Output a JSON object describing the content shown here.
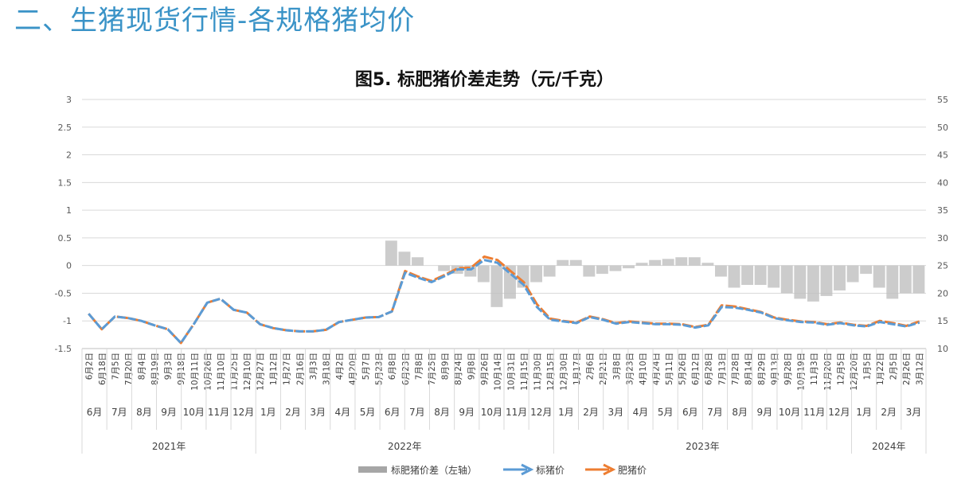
{
  "page_title": "二、生猪现货行情-各规格猪均价",
  "chart_data": {
    "type": "line",
    "title": "图5. 标肥猪价差走势（元/千克）",
    "left_axis": {
      "ticks": [
        "3",
        "2.5",
        "2",
        "1.5",
        "1",
        "0.5",
        "0",
        "-0.5",
        "-1",
        "-1.5"
      ],
      "min": -1.5,
      "max": 3
    },
    "right_axis": {
      "ticks": [
        "55",
        "50",
        "45",
        "40",
        "35",
        "30",
        "25",
        "20",
        "15",
        "10"
      ],
      "min": 10,
      "max": 55
    },
    "grid": true,
    "legend_position": "bottom",
    "x_date_labels": [
      "6月2日",
      "6月18日",
      "7月5日",
      "7月20日",
      "8月4日",
      "8月19日",
      "9月3日",
      "9月18日",
      "10月11日",
      "10月26日",
      "11月10日",
      "11月25日",
      "12月10日",
      "12月27日",
      "1月12日",
      "1月27日",
      "2月16日",
      "3月3日",
      "3月18日",
      "4月2日",
      "4月20日",
      "5月7日",
      "5月23日",
      "6月8日",
      "6月23日",
      "7月8日",
      "7月25日",
      "8月9日",
      "8月24日",
      "9月8日",
      "9月26日",
      "10月14日",
      "10月31日",
      "11月15日",
      "11月30日",
      "12月15日",
      "12月30日",
      "1月17日",
      "2月6日",
      "2月21日",
      "3月8日",
      "3月23日",
      "4月10日",
      "4月24日",
      "5月11日",
      "5月26日",
      "6月12日",
      "6月28日",
      "7月13日",
      "7月28日",
      "8月14日",
      "8月29日",
      "9月13日",
      "9月28日",
      "10月19日",
      "11月3日",
      "11月20日",
      "12月5日",
      "12月20日",
      "1月5日",
      "1月22日",
      "2月5日",
      "2月26日",
      "3月12日"
    ],
    "x_months": [
      "6月",
      "7月",
      "8月",
      "9月",
      "10月",
      "11月",
      "12月",
      "1月",
      "2月",
      "3月",
      "4月",
      "5月",
      "6月",
      "7月",
      "8月",
      "9月",
      "10月",
      "11月",
      "12月",
      "1月",
      "2月",
      "3月",
      "4月",
      "5月",
      "6月",
      "7月",
      "8月",
      "9月",
      "10月",
      "11月",
      "12月",
      "1月",
      "2月",
      "3月"
    ],
    "x_years": [
      "2021年",
      "2022年",
      "2023年",
      "2024年"
    ],
    "legend": [
      "标肥猪价差（左轴）",
      "标猪价",
      "肥猪价"
    ],
    "series": [
      {
        "name": "标肥猪价差（左轴）",
        "axis": "left",
        "color": "#bfbfbf",
        "x": [
          0,
          12,
          14,
          16,
          18,
          20,
          21,
          22,
          23,
          24,
          25,
          26,
          27,
          28,
          29,
          30,
          31,
          32,
          33,
          34,
          35,
          36,
          37,
          38,
          39,
          40,
          41,
          42,
          43,
          44,
          45,
          46,
          47,
          48,
          49,
          50,
          51,
          52,
          53,
          54,
          55,
          56,
          57,
          58,
          59,
          60,
          61,
          62,
          63
        ],
        "values": [
          0,
          0,
          0,
          0,
          0,
          0,
          0,
          0,
          0.45,
          0.25,
          0.15,
          0.0,
          -0.1,
          -0.15,
          -0.2,
          -0.3,
          -0.75,
          -0.6,
          -0.4,
          -0.3,
          -0.2,
          0.1,
          0.1,
          -0.2,
          -0.15,
          -0.1,
          -0.05,
          0.05,
          0.1,
          0.12,
          0.15,
          0.15,
          0.05,
          -0.2,
          -0.4,
          -0.35,
          -0.35,
          -0.4,
          -0.5,
          -0.6,
          -0.65,
          -0.55,
          -0.45,
          -0.3,
          -0.15,
          -0.4,
          -0.6,
          -0.5,
          -0.5
        ]
      },
      {
        "name": "标猪价",
        "axis": "right",
        "color": "#5b9bd5",
        "x": [
          0,
          1,
          2,
          3,
          4,
          5,
          6,
          7,
          8,
          9,
          10,
          11,
          12,
          13,
          14,
          15,
          16,
          17,
          18,
          19,
          20,
          21,
          22,
          23,
          24,
          25,
          26,
          27,
          28,
          29,
          30,
          31,
          32,
          33,
          34,
          35,
          36,
          37,
          38,
          39,
          40,
          41,
          42,
          43,
          44,
          45,
          46,
          47,
          48,
          49,
          50,
          51,
          52,
          53,
          54,
          55,
          56,
          57,
          58,
          59,
          60,
          61,
          62,
          63
        ],
        "values": [
          16.3,
          13.5,
          15.8,
          15.5,
          15.0,
          14.2,
          13.5,
          11.0,
          14.5,
          18.3,
          19.0,
          17.0,
          16.5,
          14.4,
          13.7,
          13.3,
          13.1,
          13.1,
          13.4,
          14.8,
          15.2,
          15.6,
          15.7,
          16.7,
          23.7,
          22.8,
          22.0,
          23.1,
          24.3,
          24.3,
          26.0,
          25.5,
          23.5,
          21.5,
          17.5,
          15.2,
          14.9,
          14.6,
          15.7,
          15.2,
          14.5,
          14.8,
          14.6,
          14.4,
          14.4,
          14.3,
          13.8,
          14.2,
          17.5,
          17.4,
          17.0,
          16.5,
          15.5,
          15.1,
          14.8,
          14.7,
          14.3,
          14.6,
          14.2,
          14.0,
          14.8,
          14.4,
          14.0,
          14.7
        ]
      },
      {
        "name": "肥猪价",
        "axis": "right",
        "color": "#ed7d31",
        "x": [
          0,
          1,
          2,
          3,
          4,
          5,
          6,
          7,
          8,
          9,
          10,
          11,
          12,
          13,
          14,
          15,
          16,
          17,
          18,
          19,
          20,
          21,
          22,
          23,
          24,
          25,
          26,
          27,
          28,
          29,
          30,
          31,
          32,
          33,
          34,
          35,
          36,
          37,
          38,
          39,
          40,
          41,
          42,
          43,
          44,
          45,
          46,
          47,
          48,
          49,
          50,
          51,
          52,
          53,
          54,
          55,
          56,
          57,
          58,
          59,
          60,
          61,
          62,
          63
        ],
        "values": [
          16.3,
          13.5,
          15.8,
          15.5,
          15.0,
          14.2,
          13.5,
          11.0,
          14.5,
          18.3,
          19.0,
          17.0,
          16.5,
          14.4,
          13.7,
          13.3,
          13.1,
          13.1,
          13.4,
          14.8,
          15.2,
          15.6,
          15.7,
          16.7,
          24.0,
          23.0,
          22.2,
          23.3,
          24.5,
          24.6,
          26.6,
          26.0,
          24.0,
          22.0,
          18.0,
          15.4,
          15.0,
          14.7,
          15.8,
          15.3,
          14.6,
          14.9,
          14.7,
          14.5,
          14.5,
          14.4,
          13.9,
          14.3,
          17.8,
          17.6,
          17.1,
          16.6,
          15.6,
          15.2,
          14.9,
          14.8,
          14.4,
          14.7,
          14.3,
          14.1,
          15.0,
          14.6,
          14.1,
          14.9
        ]
      }
    ]
  }
}
